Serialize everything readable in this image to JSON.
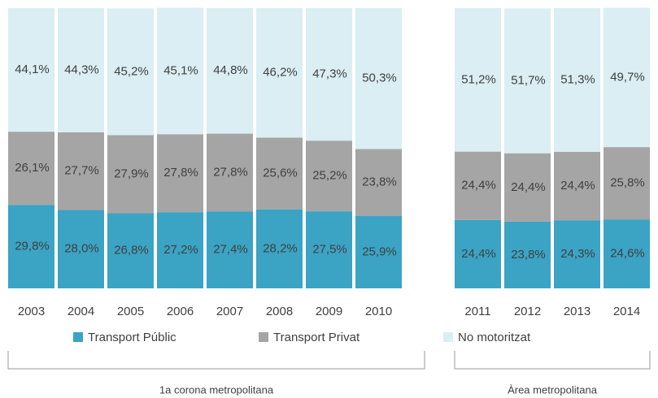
{
  "chart_data": {
    "type": "stacked_bar",
    "categories": [
      "2003",
      "2004",
      "2005",
      "2006",
      "2007",
      "2008",
      "2009",
      "2010",
      null,
      "2011",
      "2012",
      "2013",
      "2014"
    ],
    "series": [
      {
        "name": "Transport Públic",
        "color": "#3ba3c4",
        "values": [
          29.8,
          28.0,
          26.8,
          27.2,
          27.4,
          28.2,
          27.5,
          25.9,
          null,
          24.4,
          23.8,
          24.3,
          24.6
        ],
        "value_labels": [
          "29,8%",
          "28,0%",
          "26,8%",
          "27,2%",
          "27,4%",
          "28,2%",
          "27,5%",
          "25,9%",
          null,
          "24,4%",
          "23,8%",
          "24,3%",
          "24,6%"
        ]
      },
      {
        "name": "Transport Privat",
        "color": "#a5a5a5",
        "values": [
          26.1,
          27.7,
          27.9,
          27.8,
          27.8,
          25.6,
          25.2,
          23.8,
          null,
          24.4,
          24.4,
          24.4,
          25.8
        ],
        "value_labels": [
          "26,1%",
          "27,7%",
          "27,9%",
          "27,8%",
          "27,8%",
          "25,6%",
          "25,2%",
          "23,8%",
          null,
          "24,4%",
          "24,4%",
          "24,4%",
          "25,8%"
        ]
      },
      {
        "name": "No motoritzat",
        "color": "#daeef3",
        "values": [
          44.1,
          44.3,
          45.2,
          45.1,
          44.8,
          46.2,
          47.3,
          50.3,
          null,
          51.2,
          51.7,
          51.3,
          49.7
        ],
        "value_labels": [
          "44,1%",
          "44,3%",
          "45,2%",
          "45,1%",
          "44,8%",
          "46,2%",
          "47,3%",
          "50,3%",
          null,
          "51,2%",
          "51,7%",
          "51,3%",
          "49,7%"
        ]
      }
    ],
    "ylim": [
      0,
      100
    ],
    "group_labels": [
      "1a corona metropolitana",
      "Àrea metropolitana"
    ]
  }
}
